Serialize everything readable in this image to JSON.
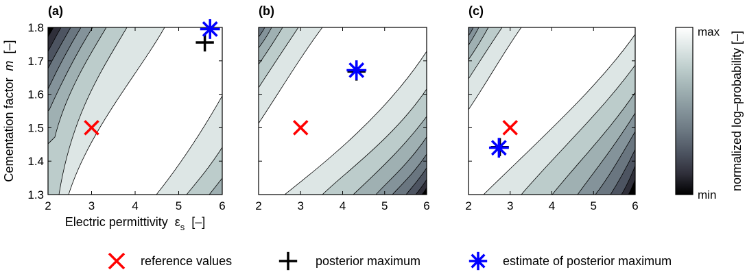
{
  "chart_data": {
    "type": "contour",
    "shared": {
      "xlim": [
        2,
        6
      ],
      "ylim": [
        1.3,
        1.8
      ],
      "xticks": [
        "2",
        "3",
        "4",
        "5",
        "6"
      ],
      "yticks": [
        "1.3",
        "1.4",
        "1.5",
        "1.6",
        "1.7",
        "1.8"
      ],
      "xlabel": "Electric permittivity",
      "xlabel_symbol": "ε",
      "xlabel_sub": "s",
      "xlabel_unit": "[–]",
      "ylabel": "Cementation factor",
      "ylabel_symbol": "m",
      "ylabel_unit": "[–]",
      "colorbar": {
        "label": "normalized log–probability [–]",
        "max_label": "max",
        "min_label": "min",
        "colors": [
          "#000000",
          "#2f2f3a",
          "#4d5461",
          "#6a7680",
          "#84939a",
          "#9fb0b2",
          "#bccccb",
          "#dde6e5",
          "#ffffff"
        ]
      }
    },
    "panels": [
      {
        "label": "(a)",
        "reference": {
          "x": 3.0,
          "y": 1.5
        },
        "posterior_max": {
          "x": 5.6,
          "y": 1.755
        },
        "estimate": {
          "x": 5.72,
          "y": 1.795
        }
      },
      {
        "label": "(b)",
        "reference": {
          "x": 3.0,
          "y": 1.5
        },
        "posterior_max": {
          "x": 4.33,
          "y": 1.668
        },
        "estimate": {
          "x": 4.33,
          "y": 1.672
        }
      },
      {
        "label": "(c)",
        "reference": {
          "x": 3.0,
          "y": 1.5
        },
        "posterior_max": {
          "x": 2.75,
          "y": 1.442
        },
        "estimate": {
          "x": 2.73,
          "y": 1.44
        }
      }
    ],
    "legend": [
      {
        "marker": "x",
        "color": "#ff0000",
        "label": "reference values"
      },
      {
        "marker": "plus",
        "color": "#000000",
        "label": "posterior maximum"
      },
      {
        "marker": "asterisk",
        "color": "#0000ff",
        "label": "estimate of posterior maximum"
      }
    ]
  }
}
